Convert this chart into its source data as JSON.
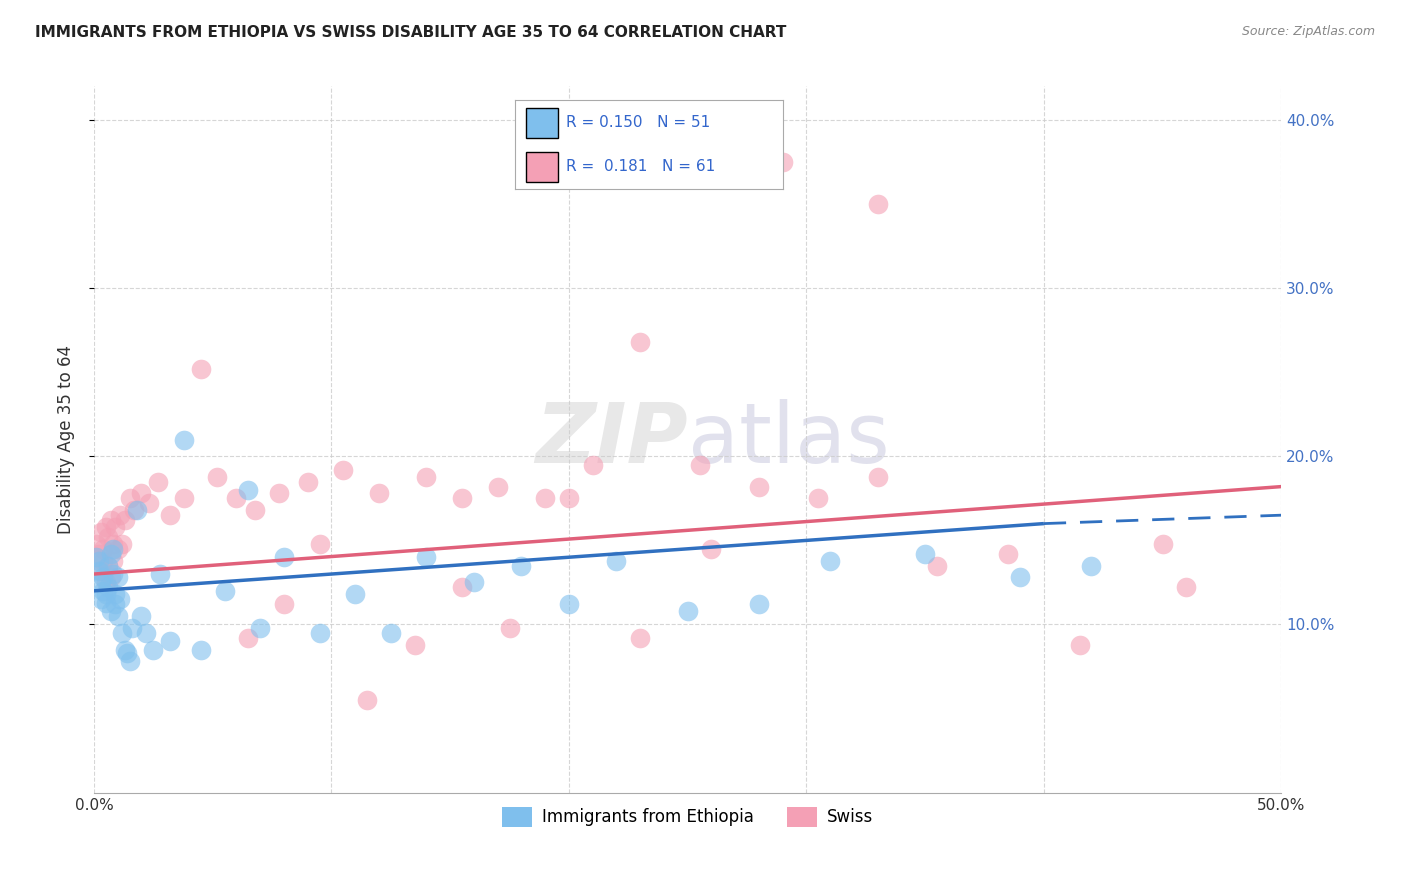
{
  "title": "IMMIGRANTS FROM ETHIOPIA VS SWISS DISABILITY AGE 35 TO 64 CORRELATION CHART",
  "source": "Source: ZipAtlas.com",
  "ylabel": "Disability Age 35 to 64",
  "xlim": [
    0.0,
    0.5
  ],
  "ylim": [
    0.0,
    0.42
  ],
  "r1": "0.150",
  "n1": "51",
  "r2": "0.181",
  "n2": "61",
  "color_ethiopia": "#7fbfed",
  "color_swiss": "#f4a0b5",
  "color_ethiopia_line": "#3070c0",
  "color_swiss_line": "#e0607a",
  "legend_label1": "Immigrants from Ethiopia",
  "legend_label2": "Swiss",
  "ethiopia_x": [
    0.001,
    0.002,
    0.002,
    0.003,
    0.003,
    0.004,
    0.004,
    0.005,
    0.005,
    0.006,
    0.006,
    0.007,
    0.007,
    0.008,
    0.008,
    0.009,
    0.009,
    0.01,
    0.01,
    0.011,
    0.012,
    0.013,
    0.014,
    0.015,
    0.016,
    0.018,
    0.02,
    0.022,
    0.025,
    0.028,
    0.032,
    0.038,
    0.045,
    0.055,
    0.065,
    0.07,
    0.08,
    0.095,
    0.11,
    0.125,
    0.14,
    0.16,
    0.18,
    0.2,
    0.22,
    0.25,
    0.28,
    0.31,
    0.35,
    0.39,
    0.42
  ],
  "ethiopia_y": [
    0.14,
    0.138,
    0.132,
    0.125,
    0.115,
    0.12,
    0.128,
    0.113,
    0.118,
    0.135,
    0.122,
    0.142,
    0.108,
    0.145,
    0.13,
    0.112,
    0.118,
    0.105,
    0.128,
    0.115,
    0.095,
    0.085,
    0.083,
    0.078,
    0.098,
    0.168,
    0.105,
    0.095,
    0.085,
    0.13,
    0.09,
    0.21,
    0.085,
    0.12,
    0.18,
    0.098,
    0.14,
    0.095,
    0.118,
    0.095,
    0.14,
    0.125,
    0.135,
    0.112,
    0.138,
    0.108,
    0.112,
    0.138,
    0.142,
    0.128,
    0.135
  ],
  "swiss_x": [
    0.001,
    0.002,
    0.003,
    0.003,
    0.004,
    0.004,
    0.005,
    0.005,
    0.006,
    0.006,
    0.007,
    0.007,
    0.008,
    0.008,
    0.009,
    0.01,
    0.011,
    0.012,
    0.013,
    0.015,
    0.017,
    0.02,
    0.023,
    0.027,
    0.032,
    0.038,
    0.045,
    0.052,
    0.06,
    0.068,
    0.078,
    0.09,
    0.105,
    0.12,
    0.14,
    0.155,
    0.17,
    0.19,
    0.21,
    0.23,
    0.255,
    0.28,
    0.305,
    0.33,
    0.355,
    0.385,
    0.415,
    0.45,
    0.46,
    0.33,
    0.29,
    0.26,
    0.23,
    0.2,
    0.175,
    0.155,
    0.135,
    0.115,
    0.095,
    0.08,
    0.065
  ],
  "swiss_y": [
    0.148,
    0.142,
    0.155,
    0.132,
    0.145,
    0.138,
    0.158,
    0.125,
    0.152,
    0.135,
    0.162,
    0.128,
    0.148,
    0.138,
    0.158,
    0.145,
    0.165,
    0.148,
    0.162,
    0.175,
    0.168,
    0.178,
    0.172,
    0.185,
    0.165,
    0.175,
    0.252,
    0.188,
    0.175,
    0.168,
    0.178,
    0.185,
    0.192,
    0.178,
    0.188,
    0.175,
    0.182,
    0.175,
    0.195,
    0.268,
    0.195,
    0.182,
    0.175,
    0.188,
    0.135,
    0.142,
    0.088,
    0.148,
    0.122,
    0.35,
    0.375,
    0.145,
    0.092,
    0.175,
    0.098,
    0.122,
    0.088,
    0.055,
    0.148,
    0.112,
    0.092
  ]
}
